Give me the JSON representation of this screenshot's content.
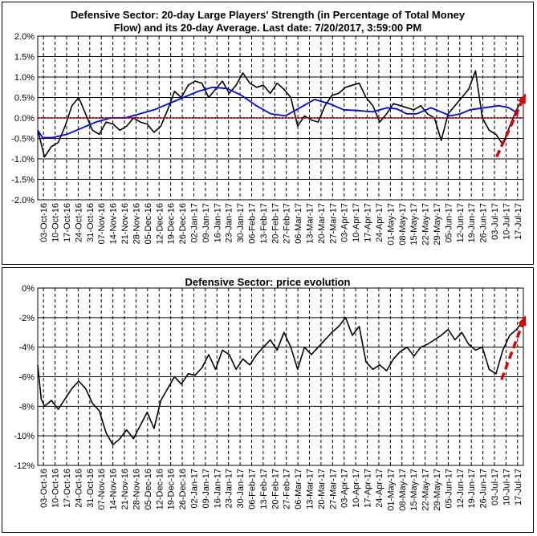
{
  "colors": {
    "strength": "#000000",
    "average": "#0000ff",
    "zero_line": "#cc0000",
    "arrow": "#e00000"
  },
  "x_dates": [
    "03-Oct-16",
    "10-Oct-16",
    "17-Oct-16",
    "24-Oct-16",
    "31-Oct-16",
    "07-Nov-16",
    "14-Nov-16",
    "21-Nov-16",
    "28-Nov-16",
    "05-Dec-16",
    "12-Dec-16",
    "19-Dec-16",
    "26-Dec-16",
    "02-Jan-17",
    "09-Jan-17",
    "16-Jan-17",
    "23-Jan-17",
    "30-Jan-17",
    "06-Feb-17",
    "13-Feb-17",
    "20-Feb-17",
    "27-Feb-17",
    "06-Mar-17",
    "13-Mar-17",
    "20-Mar-17",
    "27-Mar-17",
    "03-Apr-17",
    "10-Apr-17",
    "17-Apr-17",
    "24-Apr-17",
    "01-May-17",
    "08-May-17",
    "15-May-17",
    "22-May-17",
    "29-May-17",
    "05-Jun-17",
    "12-Jun-17",
    "19-Jun-17",
    "26-Jun-17",
    "03-Jul-17",
    "10-Jul-17",
    "17-Jul-17"
  ],
  "chart_data": [
    {
      "type": "line",
      "title": "Defensive Sector: 20-day Large Players' Strength (in Percentage of Total Money Flow) and its 20-day Average. Last date: 7/20/2017, 3:59:00 PM",
      "title_lines": [
        "Defensive Sector: 20-day Large Players' Strength (in Percentage of Total Money",
        "Flow) and its 20-day Average. Last date: 7/20/2017, 3:59:00 PM"
      ],
      "y_tick_labels": [
        "2.0%",
        "1.5%",
        "1.0%",
        "0.5%",
        "0.0%",
        "-0.5%",
        "-1.0%",
        "-1.5%",
        "-2.0%"
      ],
      "ylim": [
        -2.0,
        2.0
      ],
      "y_unit": "%",
      "grid": true,
      "series": [
        {
          "color": "#000000",
          "points": [
            [
              0,
              -0.3
            ],
            [
              1,
              -0.95
            ],
            [
              2,
              -0.7
            ],
            [
              3,
              -0.6
            ],
            [
              4,
              -0.2
            ],
            [
              5,
              0.3
            ],
            [
              6,
              0.5
            ],
            [
              7,
              0.1
            ],
            [
              8,
              -0.3
            ],
            [
              9,
              -0.4
            ],
            [
              10,
              -0.1
            ],
            [
              11,
              -0.15
            ],
            [
              12,
              -0.3
            ],
            [
              13,
              -0.2
            ],
            [
              14,
              0.0
            ],
            [
              15,
              -0.1
            ],
            [
              16,
              -0.15
            ],
            [
              17,
              -0.35
            ],
            [
              18,
              -0.2
            ],
            [
              19,
              0.2
            ],
            [
              20,
              0.65
            ],
            [
              21,
              0.5
            ],
            [
              22,
              0.8
            ],
            [
              23,
              0.9
            ],
            [
              24,
              0.85
            ],
            [
              25,
              0.5
            ],
            [
              26,
              0.7
            ],
            [
              27,
              0.9
            ],
            [
              28,
              0.6
            ],
            [
              29,
              0.8
            ],
            [
              30,
              1.1
            ],
            [
              31,
              0.85
            ],
            [
              32,
              0.75
            ],
            [
              33,
              0.8
            ],
            [
              34,
              0.6
            ],
            [
              35,
              0.85
            ],
            [
              36,
              0.7
            ],
            [
              37,
              0.5
            ],
            [
              38,
              -0.2
            ],
            [
              39,
              0.05
            ],
            [
              40,
              -0.05
            ],
            [
              41,
              -0.1
            ],
            [
              42,
              0.3
            ],
            [
              43,
              0.55
            ],
            [
              44,
              0.6
            ],
            [
              45,
              0.75
            ],
            [
              46,
              0.8
            ],
            [
              47,
              0.85
            ],
            [
              48,
              0.5
            ],
            [
              49,
              0.3
            ],
            [
              50,
              -0.1
            ],
            [
              51,
              0.1
            ],
            [
              52,
              0.35
            ],
            [
              53,
              0.3
            ],
            [
              54,
              0.25
            ],
            [
              55,
              0.2
            ],
            [
              56,
              0.3
            ],
            [
              57,
              0.1
            ],
            [
              58,
              0.0
            ],
            [
              59,
              -0.55
            ],
            [
              60,
              0.1
            ],
            [
              61,
              0.3
            ],
            [
              62,
              0.5
            ],
            [
              63,
              0.7
            ],
            [
              64,
              1.15
            ],
            [
              65,
              0.0
            ],
            [
              66,
              -0.3
            ],
            [
              67,
              -0.4
            ],
            [
              68,
              -0.65
            ],
            [
              69,
              -0.2
            ],
            [
              70,
              0.2
            ],
            [
              71,
              0.5
            ]
          ]
        },
        {
          "color": "#0000ff",
          "points": [
            [
              0,
              -0.3
            ],
            [
              1,
              -0.48
            ],
            [
              3,
              -0.48
            ],
            [
              6,
              -0.4
            ],
            [
              9,
              -0.25
            ],
            [
              12,
              -0.1
            ],
            [
              15,
              0.0
            ],
            [
              18,
              0.0
            ],
            [
              21,
              0.1
            ],
            [
              24,
              0.2
            ],
            [
              27,
              0.35
            ],
            [
              30,
              0.5
            ],
            [
              33,
              0.65
            ],
            [
              36,
              0.75
            ],
            [
              39,
              0.72
            ],
            [
              42,
              0.55
            ],
            [
              45,
              0.3
            ],
            [
              48,
              0.1
            ],
            [
              51,
              0.05
            ],
            [
              54,
              0.25
            ],
            [
              57,
              0.45
            ],
            [
              60,
              0.35
            ],
            [
              63,
              0.2
            ],
            [
              66,
              0.18
            ],
            [
              69,
              0.15
            ],
            [
              72,
              0.25
            ],
            [
              74,
              0.22
            ],
            [
              76,
              0.1
            ],
            [
              78,
              0.1
            ],
            [
              81,
              0.25
            ],
            [
              83,
              0.15
            ],
            [
              85,
              0.05
            ],
            [
              87,
              0.1
            ],
            [
              89,
              0.2
            ],
            [
              92,
              0.25
            ],
            [
              95,
              0.3
            ],
            [
              97,
              0.25
            ],
            [
              99,
              0.1
            ]
          ]
        },
        {
          "color": "#cc0000",
          "points": [
            [
              0,
              0.0
            ],
            [
              100,
              0.0
            ]
          ]
        }
      ]
    },
    {
      "type": "line",
      "title": "Defensive Sector: price evolution",
      "y_tick_labels": [
        "0%",
        "-2%",
        "-4%",
        "-6%",
        "-8%",
        "-10%",
        "-12%"
      ],
      "ylim": [
        -12,
        0
      ],
      "y_unit": "%",
      "grid": true,
      "series": [
        {
          "color": "#000000",
          "points": [
            [
              0,
              -5.2
            ],
            [
              0.5,
              -7.5
            ],
            [
              1,
              -8.0
            ],
            [
              2,
              -7.6
            ],
            [
              3,
              -8.2
            ],
            [
              4,
              -7.5
            ],
            [
              5,
              -6.8
            ],
            [
              6,
              -6.3
            ],
            [
              7,
              -6.8
            ],
            [
              8,
              -7.8
            ],
            [
              9,
              -8.3
            ],
            [
              10,
              -9.8
            ],
            [
              11,
              -10.6
            ],
            [
              12,
              -10.2
            ],
            [
              13,
              -9.6
            ],
            [
              14,
              -10.2
            ],
            [
              15,
              -9.3
            ],
            [
              16,
              -8.4
            ],
            [
              17,
              -9.5
            ],
            [
              18,
              -7.6
            ],
            [
              19,
              -6.8
            ],
            [
              20,
              -6.0
            ],
            [
              21,
              -6.5
            ],
            [
              22,
              -5.8
            ],
            [
              23,
              -5.9
            ],
            [
              24,
              -5.4
            ],
            [
              25,
              -4.5
            ],
            [
              26,
              -5.5
            ],
            [
              27,
              -4.2
            ],
            [
              28,
              -4.5
            ],
            [
              29,
              -5.5
            ],
            [
              30,
              -4.8
            ],
            [
              31,
              -5.2
            ],
            [
              32,
              -4.5
            ],
            [
              33,
              -4.0
            ],
            [
              34,
              -3.5
            ],
            [
              35,
              -4.2
            ],
            [
              36,
              -3.0
            ],
            [
              37,
              -4.0
            ],
            [
              38,
              -5.5
            ],
            [
              39,
              -4.0
            ],
            [
              40,
              -4.5
            ],
            [
              41,
              -4.0
            ],
            [
              42,
              -3.5
            ],
            [
              43,
              -3.0
            ],
            [
              44,
              -2.6
            ],
            [
              45,
              -2.0
            ],
            [
              46,
              -3.2
            ],
            [
              47,
              -2.6
            ],
            [
              48,
              -5.0
            ],
            [
              49,
              -5.5
            ],
            [
              50,
              -5.2
            ],
            [
              51,
              -5.6
            ],
            [
              52,
              -4.8
            ],
            [
              53,
              -4.3
            ],
            [
              54,
              -4.0
            ],
            [
              55,
              -4.6
            ],
            [
              56,
              -4.0
            ],
            [
              57,
              -3.8
            ],
            [
              58,
              -3.5
            ],
            [
              59,
              -3.2
            ],
            [
              60,
              -2.8
            ],
            [
              61,
              -3.5
            ],
            [
              62,
              -3.0
            ],
            [
              63,
              -3.8
            ],
            [
              64,
              -4.2
            ],
            [
              65,
              -4.0
            ],
            [
              66,
              -5.5
            ],
            [
              67,
              -5.8
            ],
            [
              68,
              -4.2
            ],
            [
              69,
              -3.2
            ],
            [
              70,
              -2.8
            ],
            [
              71,
              -2.2
            ]
          ]
        }
      ]
    }
  ]
}
